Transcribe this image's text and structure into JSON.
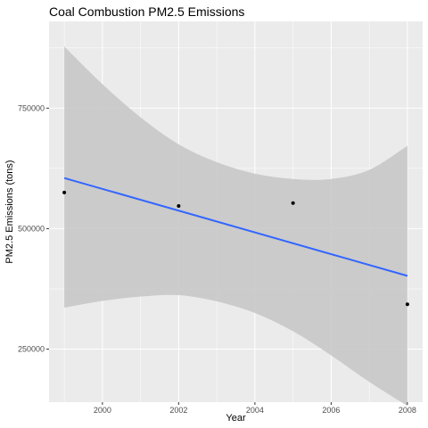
{
  "chart_data": {
    "type": "scatter",
    "title": "Coal Combustion PM2.5 Emissions",
    "xlabel": "Year",
    "ylabel": "PM2.5 Emissions (tons)",
    "x": [
      1999,
      2002,
      2005,
      2008
    ],
    "y": [
      575000,
      547000,
      553000,
      343000
    ],
    "xlim": [
      1998.6,
      2008.4
    ],
    "ylim": [
      140000,
      930000
    ],
    "x_ticks": [
      2000,
      2002,
      2004,
      2006,
      2008
    ],
    "y_ticks": [
      250000,
      500000,
      750000
    ],
    "y_tick_labels": [
      "250000",
      "500000",
      "750000"
    ],
    "trend": {
      "method": "linear fit",
      "start": [
        1999,
        605000
      ],
      "end": [
        2008,
        402000
      ],
      "band_x": [
        1999,
        2000,
        2001,
        2002,
        2003,
        2004,
        2005,
        2006,
        2007,
        2008
      ],
      "band_upper": [
        878000,
        800000,
        731000,
        675000,
        638000,
        614000,
        603000,
        603000,
        622000,
        672000
      ],
      "band_lower": [
        336000,
        350000,
        359000,
        362000,
        349000,
        325000,
        287000,
        237000,
        182000,
        132000
      ]
    },
    "grid": true,
    "legend": "none",
    "colors": {
      "panel": "#ebebeb",
      "grid": "#ffffff",
      "band": "#c8c8c8",
      "line": "#3366ff",
      "points": "#000000"
    }
  }
}
